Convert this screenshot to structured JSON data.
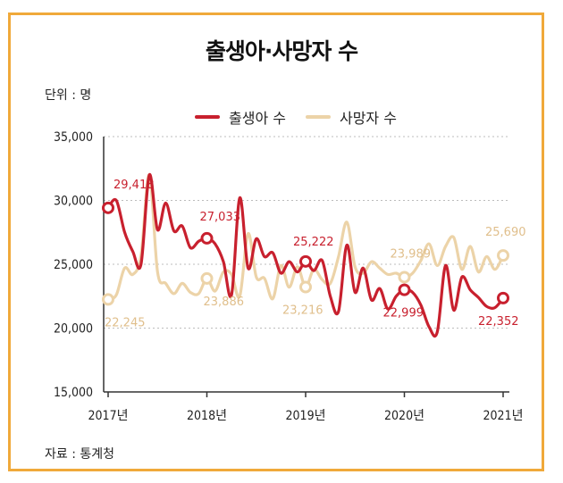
{
  "title": "출생아·사망자 수",
  "unit_label": "단위 : 명",
  "source": "자료 : 통계청",
  "colors": {
    "births": "#c8202e",
    "deaths": "#ecd3a8",
    "frame": "#f0a93a",
    "births_labels": "#c8202e",
    "deaths_labels": "#e0bf8c"
  },
  "chart_data": {
    "type": "line",
    "ylim": [
      15000,
      35000
    ],
    "yticks": [
      15000,
      20000,
      25000,
      30000,
      35000
    ],
    "ytick_labels": [
      "15,000",
      "20,000",
      "25,000",
      "30,000",
      "35,000"
    ],
    "x_range": [
      2017.0,
      2021.0
    ],
    "xtick_values": [
      2017,
      2018,
      2019,
      2020,
      2021
    ],
    "xtick_labels": [
      "2017년",
      "2018년",
      "2019년",
      "2020년",
      "2021년"
    ],
    "grid": "horizontal dashed",
    "legend_position": "top",
    "series": [
      {
        "name": "출생아 수",
        "x": [
          2017.0,
          2017.083,
          2017.167,
          2017.25,
          2017.333,
          2017.417,
          2017.5,
          2017.583,
          2017.667,
          2017.75,
          2017.833,
          2017.917,
          2018.0,
          2018.083,
          2018.167,
          2018.25,
          2018.333,
          2018.417,
          2018.5,
          2018.583,
          2018.667,
          2018.75,
          2018.833,
          2018.917,
          2019.0,
          2019.083,
          2019.167,
          2019.25,
          2019.333,
          2019.417,
          2019.5,
          2019.583,
          2019.667,
          2019.75,
          2019.833,
          2019.917,
          2020.0,
          2020.083,
          2020.167,
          2020.25,
          2020.333,
          2020.417,
          2020.5,
          2020.583,
          2020.667,
          2020.75,
          2020.833,
          2020.917,
          2021.0
        ],
        "values": [
          29418,
          30000,
          27500,
          26000,
          25000,
          32000,
          27700,
          29800,
          27600,
          28000,
          26300,
          26800,
          27033,
          26600,
          25200,
          22600,
          30200,
          24700,
          27000,
          25600,
          25900,
          24300,
          25200,
          24400,
          25222,
          24500,
          25300,
          22500,
          21300,
          26500,
          22800,
          24700,
          22200,
          23100,
          21500,
          22500,
          22999,
          22800,
          21800,
          20100,
          19700,
          24900,
          21400,
          24000,
          23000,
          22400,
          21700,
          21600,
          22352
        ],
        "point_labels": [
          {
            "x": 2017.0,
            "y": 29418,
            "text": "29,418"
          },
          {
            "x": 2018.0,
            "y": 27033,
            "text": "27,033"
          },
          {
            "x": 2019.0,
            "y": 25222,
            "text": "25,222"
          },
          {
            "x": 2020.0,
            "y": 22999,
            "text": "22,999"
          },
          {
            "x": 2021.0,
            "y": 22352,
            "text": "22,352"
          }
        ]
      },
      {
        "name": "사망자 수",
        "x": [
          2017.0,
          2017.083,
          2017.167,
          2017.25,
          2017.333,
          2017.417,
          2017.5,
          2017.583,
          2017.667,
          2017.75,
          2017.833,
          2017.917,
          2018.0,
          2018.083,
          2018.167,
          2018.25,
          2018.333,
          2018.417,
          2018.5,
          2018.583,
          2018.667,
          2018.75,
          2018.833,
          2018.917,
          2019.0,
          2019.083,
          2019.167,
          2019.25,
          2019.333,
          2019.417,
          2019.5,
          2019.583,
          2019.667,
          2019.75,
          2019.833,
          2019.917,
          2020.0,
          2020.083,
          2020.167,
          2020.25,
          2020.333,
          2020.417,
          2020.5,
          2020.583,
          2020.667,
          2020.75,
          2020.833,
          2020.917,
          2021.0
        ],
        "values": [
          22245,
          22600,
          24700,
          24200,
          25700,
          32000,
          24400,
          23500,
          22700,
          23500,
          22800,
          22700,
          23886,
          22900,
          24400,
          24200,
          22500,
          27400,
          24000,
          23900,
          22300,
          24900,
          23200,
          24800,
          23216,
          24600,
          23800,
          23500,
          25600,
          28300,
          24800,
          24300,
          25200,
          24700,
          24200,
          24300,
          23989,
          24300,
          25300,
          26600,
          24900,
          26400,
          27100,
          24600,
          26400,
          24400,
          25600,
          24600,
          25690
        ],
        "point_labels": [
          {
            "x": 2017.0,
            "y": 22245,
            "text": "22,245"
          },
          {
            "x": 2018.0,
            "y": 23886,
            "text": "23,886"
          },
          {
            "x": 2019.0,
            "y": 23216,
            "text": "23,216"
          },
          {
            "x": 2020.0,
            "y": 23989,
            "text": "23,989"
          },
          {
            "x": 2021.0,
            "y": 25690,
            "text": "25,690"
          }
        ]
      }
    ]
  }
}
